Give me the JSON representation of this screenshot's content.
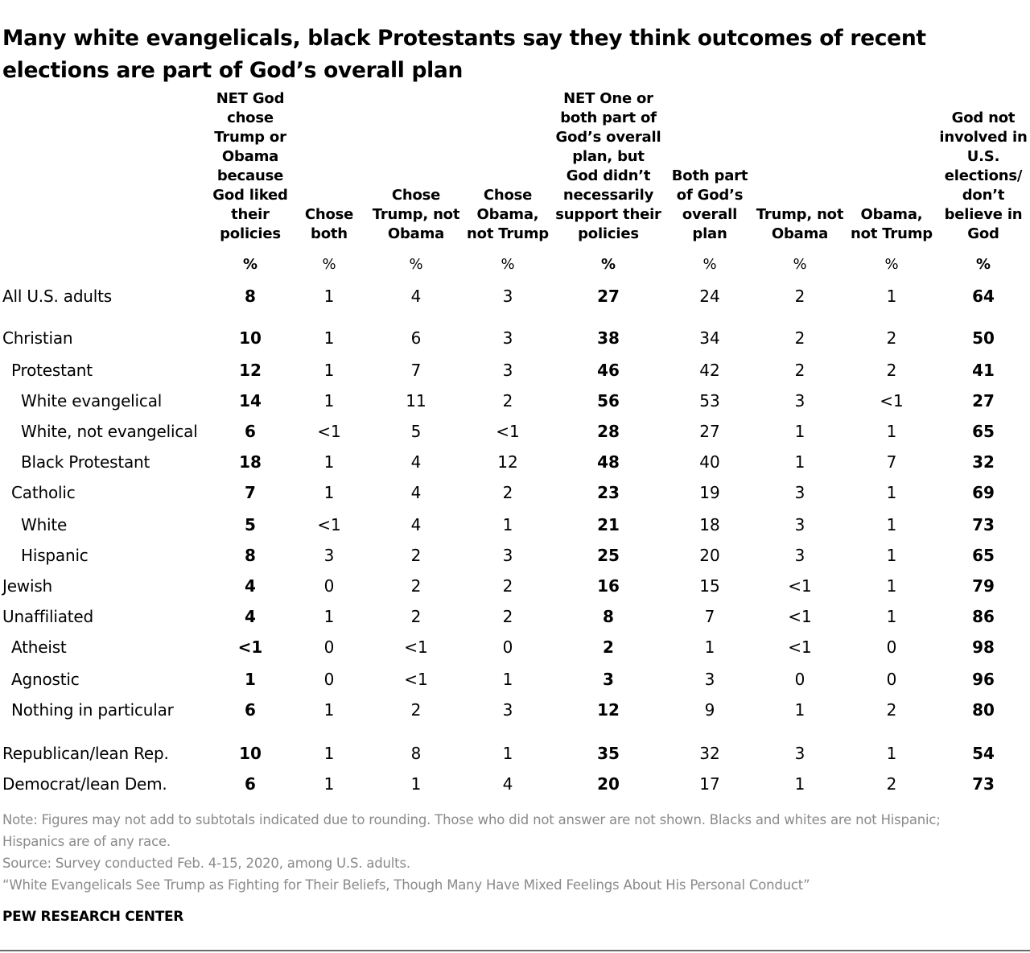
{
  "title": "Many white evangelicals, black Protestants say they think outcomes of recent elections are part of God’s overall plan",
  "chart_data": {
    "type": "table",
    "columns": [
      {
        "header": "NET God chose Trump or Obama because God liked their policies",
        "unit": "%",
        "bold": true
      },
      {
        "header": "Chose both",
        "unit": "%",
        "bold": false
      },
      {
        "header": "Chose Trump, not Obama",
        "unit": "%",
        "bold": false
      },
      {
        "header": "Chose Obama, not Trump",
        "unit": "%",
        "bold": false
      },
      {
        "header": "NET One or both part of God’s overall plan, but God didn’t necessarily support their policies",
        "unit": "%",
        "bold": true
      },
      {
        "header": "Both part of God’s overall plan",
        "unit": "%",
        "bold": false
      },
      {
        "header": "Trump, not Obama",
        "unit": "%",
        "bold": false
      },
      {
        "header": "Obama, not Trump",
        "unit": "%",
        "bold": false
      },
      {
        "header": "God not involved in U.S. elections/ don’t believe in God",
        "unit": "%",
        "bold": true
      }
    ],
    "rows": [
      {
        "label": "All U.S. adults",
        "level": 0,
        "values": [
          "8",
          "1",
          "4",
          "3",
          "27",
          "24",
          "2",
          "1",
          "64"
        ]
      },
      {
        "label": "Christian",
        "level": 0,
        "values": [
          "10",
          "1",
          "6",
          "3",
          "38",
          "34",
          "2",
          "2",
          "50"
        ]
      },
      {
        "label": "Protestant",
        "level": 1,
        "values": [
          "12",
          "1",
          "7",
          "3",
          "46",
          "42",
          "2",
          "2",
          "41"
        ]
      },
      {
        "label": "White evangelical",
        "level": 2,
        "values": [
          "14",
          "1",
          "11",
          "2",
          "56",
          "53",
          "3",
          "<1",
          "27"
        ]
      },
      {
        "label": "White, not evangelical",
        "level": 2,
        "values": [
          "6",
          "<1",
          "5",
          "<1",
          "28",
          "27",
          "1",
          "1",
          "65"
        ]
      },
      {
        "label": "Black Protestant",
        "level": 2,
        "values": [
          "18",
          "1",
          "4",
          "12",
          "48",
          "40",
          "1",
          "7",
          "32"
        ]
      },
      {
        "label": "Catholic",
        "level": 1,
        "values": [
          "7",
          "1",
          "4",
          "2",
          "23",
          "19",
          "3",
          "1",
          "69"
        ]
      },
      {
        "label": "White",
        "level": 2,
        "values": [
          "5",
          "<1",
          "4",
          "1",
          "21",
          "18",
          "3",
          "1",
          "73"
        ]
      },
      {
        "label": "Hispanic",
        "level": 2,
        "values": [
          "8",
          "3",
          "2",
          "3",
          "25",
          "20",
          "3",
          "1",
          "65"
        ]
      },
      {
        "label": "Jewish",
        "level": 0,
        "values": [
          "4",
          "0",
          "2",
          "2",
          "16",
          "15",
          "<1",
          "1",
          "79"
        ]
      },
      {
        "label": "Unaffiliated",
        "level": 0,
        "values": [
          "4",
          "1",
          "2",
          "2",
          "8",
          "7",
          "<1",
          "1",
          "86"
        ]
      },
      {
        "label": "Atheist",
        "level": 1,
        "values": [
          "<1",
          "0",
          "<1",
          "0",
          "2",
          "1",
          "<1",
          "0",
          "98"
        ]
      },
      {
        "label": "Agnostic",
        "level": 1,
        "values": [
          "1",
          "0",
          "<1",
          "1",
          "3",
          "3",
          "0",
          "0",
          "96"
        ]
      },
      {
        "label": "Nothing in particular",
        "level": 1,
        "values": [
          "6",
          "1",
          "2",
          "3",
          "12",
          "9",
          "1",
          "2",
          "80"
        ]
      },
      {
        "label": "Republican/lean Rep.",
        "level": 0,
        "values": [
          "10",
          "1",
          "8",
          "1",
          "35",
          "32",
          "3",
          "1",
          "54"
        ]
      },
      {
        "label": "Democrat/lean Dem.",
        "level": 0,
        "values": [
          "6",
          "1",
          "1",
          "4",
          "20",
          "17",
          "1",
          "2",
          "73"
        ]
      }
    ]
  },
  "notes": [
    "Note: Figures may not add to subtotals indicated due to rounding. Those who did not answer are not shown. Blacks and whites are not Hispanic; Hispanics are of any race.",
    "Source: Survey conducted Feb. 4-15, 2020, among U.S. adults.",
    "“White Evangelicals See Trump as Fighting for Their Beliefs, Though Many Have Mixed Feelings About His Personal Conduct”"
  ],
  "brand": "PEW RESEARCH CENTER"
}
